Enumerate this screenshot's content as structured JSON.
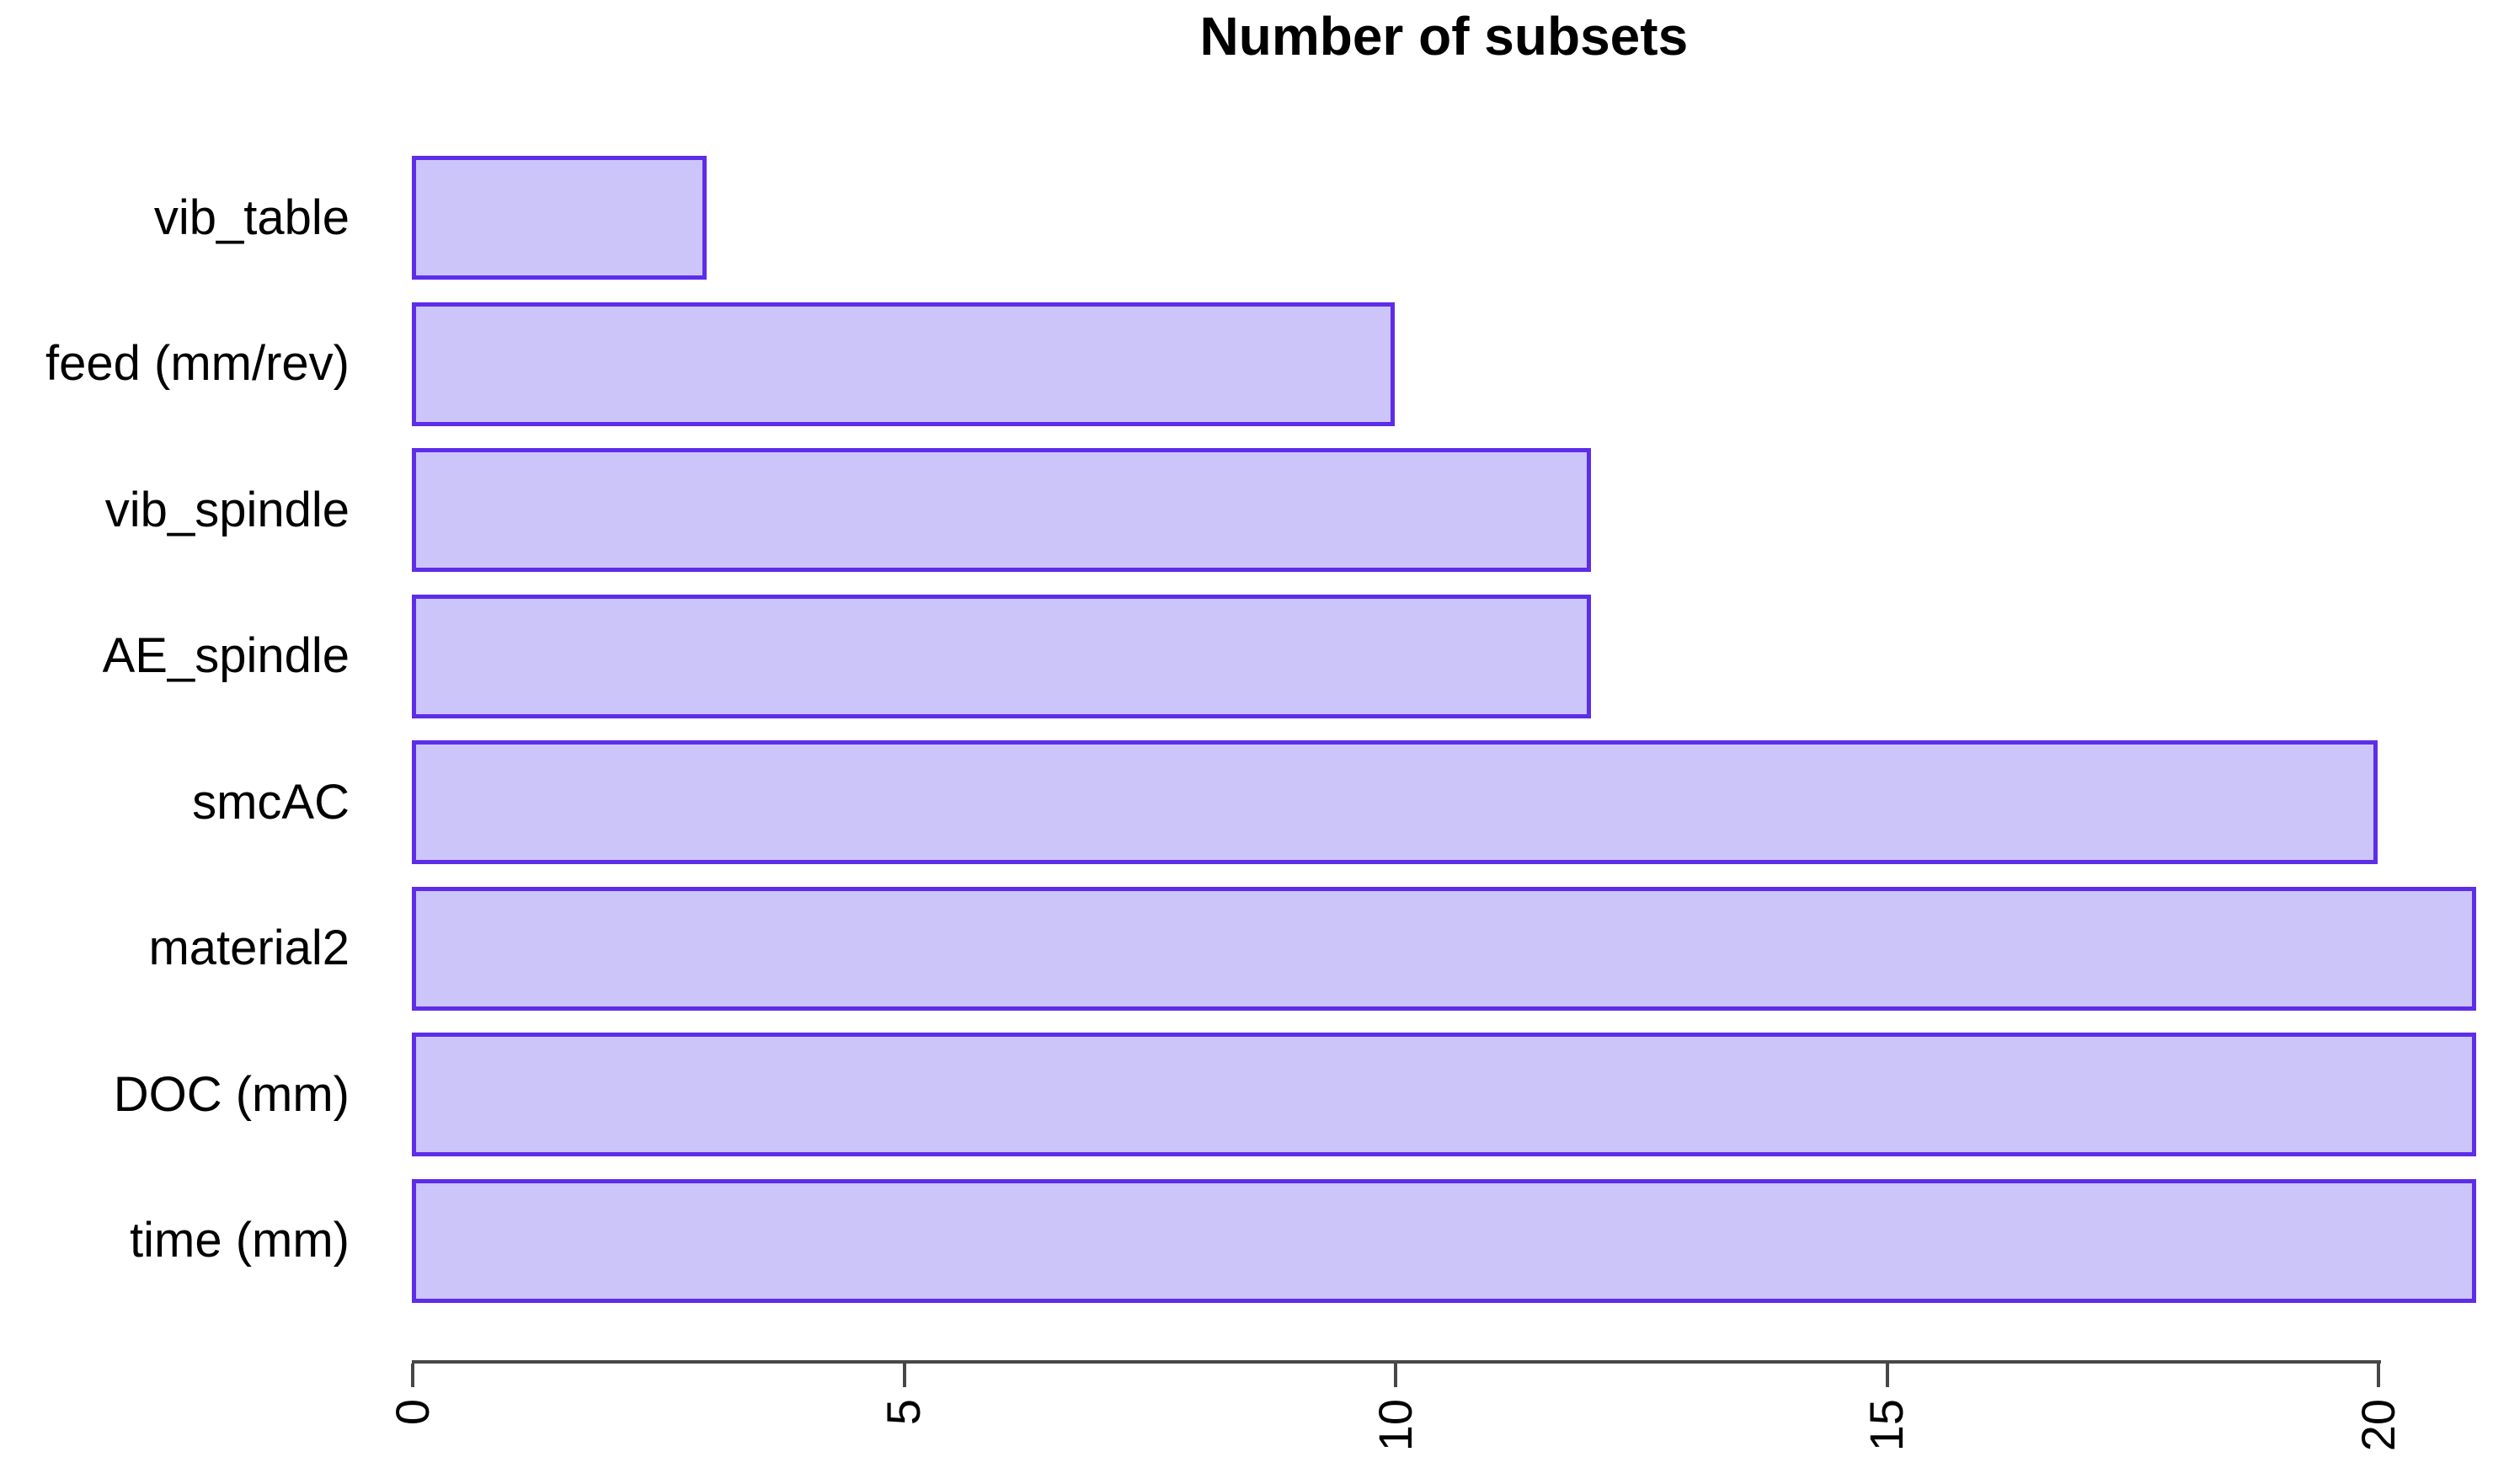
{
  "chart_data": {
    "type": "bar",
    "orientation": "horizontal",
    "title": "Number of subsets",
    "categories": [
      "vib_table",
      "feed (mm/rev)",
      "vib_spindle",
      "AE_spindle",
      "smcAC",
      "material2",
      "DOC (mm)",
      "time (mm)"
    ],
    "values": [
      3,
      10,
      12,
      12,
      20,
      21,
      21,
      21
    ],
    "xlabel": "",
    "ylabel": "",
    "xlim": [
      0,
      21
    ],
    "xticks": [
      0,
      5,
      10,
      15,
      20
    ],
    "xtick_label_rotation": "vertical",
    "grid": false,
    "legend": "none",
    "colors": {
      "bar_fill": "#CCC5FA",
      "bar_border": "#5D2DE8",
      "axis": "#474747",
      "text": "#000000",
      "background": "#FFFFFF"
    }
  }
}
